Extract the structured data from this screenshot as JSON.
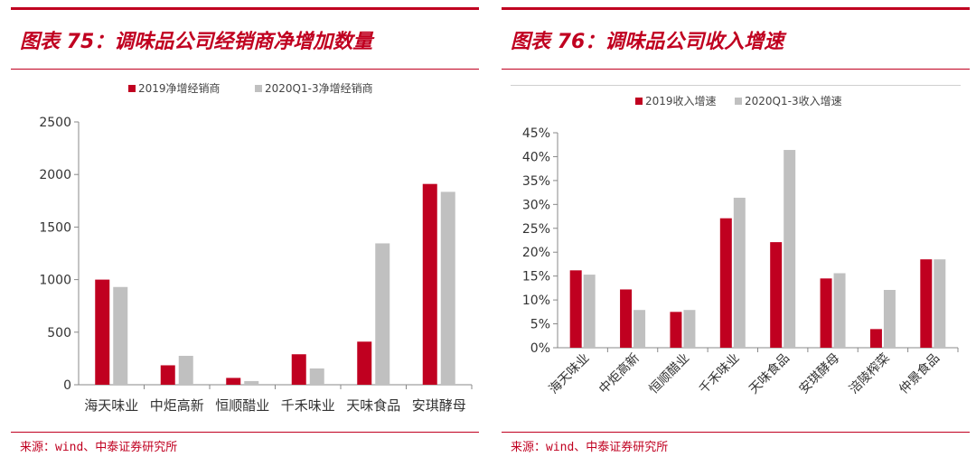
{
  "panels": [
    {
      "title": "图表 75：调味品公司经销商净增加数量",
      "source": "来源：wind、中泰证券研究所"
    },
    {
      "title": "图表 76：调味品公司收入增速",
      "source": "来源：wind、中泰证券研究所"
    }
  ],
  "colors": {
    "accent": "#c00020",
    "series1": "#c00020",
    "series2": "#c0c0c0"
  },
  "chart_data": [
    {
      "type": "bar",
      "title": "图表 75：调味品公司经销商净增加数量",
      "categories": [
        "海天味业",
        "中炬高新",
        "恒顺醋业",
        "千禾味业",
        "天味食品",
        "安琪酵母"
      ],
      "series": [
        {
          "name": "2019净增经销商",
          "values": [
            1000,
            185,
            65,
            290,
            410,
            1910
          ]
        },
        {
          "name": "2020Q1-3净增经销商",
          "values": [
            930,
            275,
            35,
            155,
            1345,
            1835
          ]
        }
      ],
      "ylim": [
        0,
        2500
      ],
      "yticks": [
        "0",
        "500",
        "1000",
        "1500",
        "2000",
        "2500"
      ],
      "legend": "top",
      "grid": false,
      "xlabel": "",
      "ylabel": ""
    },
    {
      "type": "bar",
      "title": "图表 76：调味品公司收入增速",
      "categories": [
        "海天味业",
        "中炬高新",
        "恒顺醋业",
        "千禾味业",
        "天味食品",
        "安琪酵母",
        "涪陵榨菜",
        "仲景食品"
      ],
      "series": [
        {
          "name": "2019收入增速",
          "values": [
            16.2,
            12.2,
            7.5,
            27.1,
            22.1,
            14.5,
            3.9,
            18.5
          ]
        },
        {
          "name": "2020Q1-3收入增速",
          "values": [
            15.3,
            7.9,
            7.9,
            31.4,
            41.4,
            15.6,
            12.1,
            18.5
          ]
        }
      ],
      "ylim": [
        0,
        45
      ],
      "yticks": [
        "0%",
        "5%",
        "10%",
        "15%",
        "20%",
        "25%",
        "30%",
        "35%",
        "40%",
        "45%"
      ],
      "legend": "top",
      "grid": false,
      "xlabel": "",
      "ylabel": ""
    }
  ]
}
